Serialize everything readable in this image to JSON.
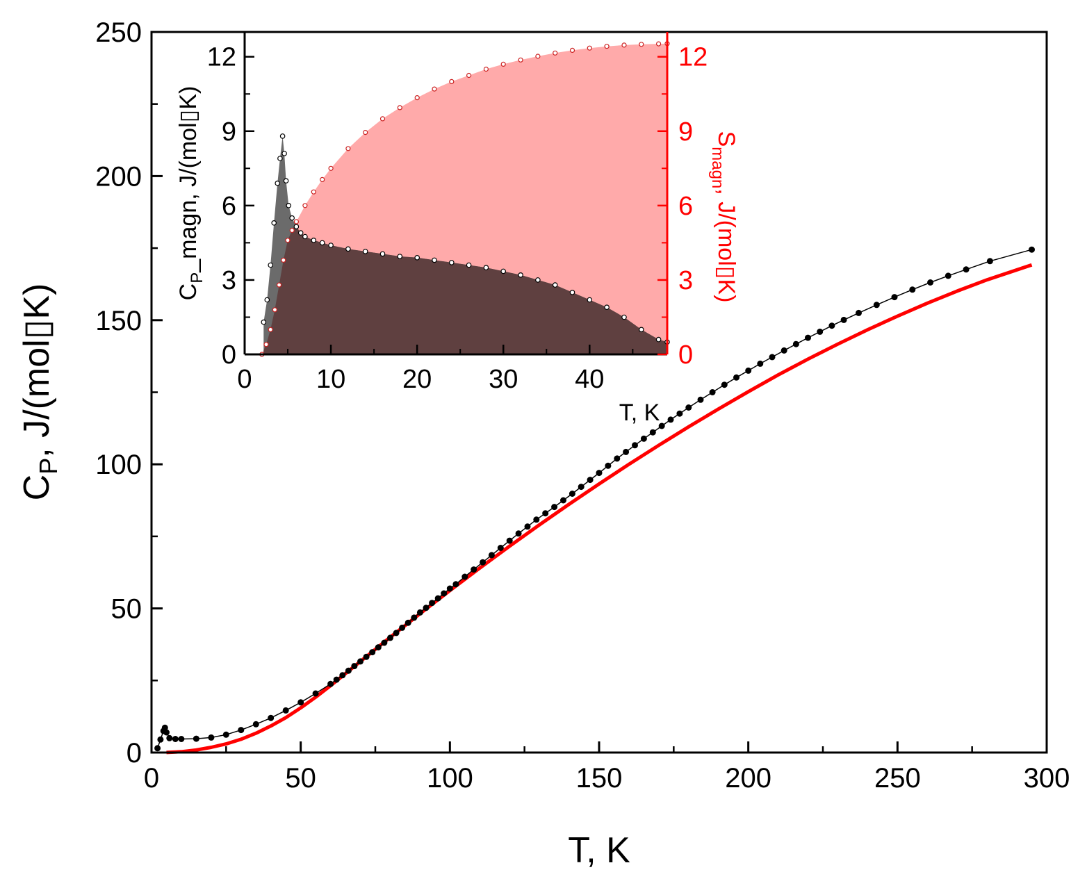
{
  "chart_data": [
    {
      "type": "scatter",
      "role": "main",
      "xlabel": "T, K",
      "ylabel_main": "C",
      "ylabel_sub": "P",
      "ylabel_rest": ", J/(mol▯K)",
      "xlim": [
        0,
        300
      ],
      "ylim": [
        0,
        250
      ],
      "xticks": [
        0,
        50,
        100,
        150,
        200,
        250,
        300
      ],
      "yticks": [
        0,
        50,
        100,
        150,
        200,
        250
      ],
      "colors": {
        "measured": "#000000",
        "fit": "#ff0000"
      },
      "series": [
        {
          "kind": "measured",
          "marker": "filled-circle",
          "x": [
            2,
            3,
            4,
            4.5,
            5,
            6,
            8,
            10,
            15,
            20,
            25,
            30,
            35,
            40,
            45,
            50,
            55,
            60,
            62,
            64,
            66,
            68,
            70,
            72,
            74,
            76,
            78,
            80,
            82,
            84,
            86,
            88,
            90,
            92,
            94,
            96,
            98,
            100,
            102,
            105,
            108,
            111,
            114,
            117,
            120,
            123,
            126,
            129,
            132,
            135,
            138,
            141,
            144,
            147,
            150,
            153,
            156,
            159,
            162,
            165,
            168,
            171,
            174,
            177,
            180,
            184,
            188,
            192,
            196,
            200,
            204,
            208,
            212,
            216,
            220,
            224,
            228,
            232,
            237,
            243,
            249,
            255,
            261,
            267,
            273,
            281,
            295
          ],
          "y": [
            1.5,
            4.5,
            7.5,
            8.6,
            7.0,
            5.0,
            4.7,
            4.7,
            4.8,
            5.2,
            6.2,
            7.8,
            9.8,
            12.0,
            14.6,
            17.4,
            20.5,
            23.8,
            25.3,
            26.8,
            28.4,
            30.0,
            31.6,
            33.2,
            34.8,
            36.5,
            38.1,
            39.8,
            41.5,
            43.3,
            45.0,
            46.8,
            48.6,
            50.2,
            51.9,
            53.5,
            55.2,
            56.9,
            58.4,
            61.0,
            63.5,
            66.0,
            68.5,
            71.0,
            73.5,
            76.0,
            78.4,
            80.8,
            83.0,
            85.2,
            87.5,
            89.8,
            92.2,
            94.6,
            97.0,
            99.5,
            102.0,
            104.3,
            106.6,
            108.9,
            111.1,
            113.3,
            115.5,
            117.6,
            119.7,
            122.4,
            125.0,
            127.6,
            130.1,
            132.5,
            134.9,
            137.2,
            139.5,
            141.7,
            143.9,
            146.0,
            148.1,
            150.1,
            152.5,
            155.3,
            158.0,
            160.6,
            163.1,
            165.4,
            167.6,
            170.5,
            174.5
          ]
        },
        {
          "kind": "fit",
          "marker": "line",
          "x": [
            5,
            10,
            15,
            20,
            25,
            30,
            35,
            40,
            45,
            50,
            55,
            60,
            70,
            80,
            90,
            100,
            110,
            120,
            130,
            140,
            150,
            160,
            170,
            180,
            190,
            200,
            210,
            220,
            230,
            240,
            250,
            260,
            270,
            280,
            295
          ],
          "y": [
            0.02,
            0.3,
            0.9,
            1.8,
            3.0,
            4.6,
            6.7,
            9.2,
            12.1,
            15.5,
            19.2,
            23.2,
            31.6,
            40.0,
            48.2,
            56.2,
            64.0,
            71.6,
            79.0,
            86.2,
            93.2,
            100.0,
            106.6,
            113.0,
            119.2,
            125.2,
            131.0,
            136.5,
            141.7,
            146.7,
            151.4,
            155.9,
            160.1,
            164.0,
            169.2
          ]
        }
      ]
    },
    {
      "type": "area",
      "role": "inset",
      "xlabel": "T, K",
      "ylabel_left_main": "C",
      "ylabel_left_sub": "P",
      "ylabel_left_rest": "_magn, J/(mol▯K)",
      "ylabel_right_main": "S",
      "ylabel_right_sub": "magn",
      "ylabel_right_rest": ", J/(mol▯K)",
      "xlim": [
        0,
        49
      ],
      "ylim_left": [
        0,
        13
      ],
      "ylim_right": [
        0,
        13
      ],
      "xticks": [
        0,
        10,
        20,
        30,
        40
      ],
      "yticks_left": [
        0,
        3,
        6,
        9,
        12
      ],
      "yticks_right": [
        0,
        3,
        6,
        9,
        12
      ],
      "colors": {
        "cp_fill": "#5f4040",
        "cp_peak_fill": "#6b6b6b",
        "s_fill": "#ffaaaa",
        "s_marker": "#cc2020",
        "right_axis": "#ff0000"
      },
      "series": [
        {
          "kind": "cp_magn",
          "axis": "left",
          "marker": "open-circle",
          "x": [
            2.2,
            2.6,
            3.0,
            3.4,
            3.8,
            4.1,
            4.4,
            4.6,
            4.8,
            5.1,
            5.5,
            6.0,
            6.5,
            7.0,
            8,
            9,
            10,
            12,
            14,
            16,
            18,
            20,
            22,
            24,
            26,
            28,
            30,
            32,
            34,
            36,
            38,
            40,
            42,
            44,
            46,
            48,
            49
          ],
          "y": [
            1.3,
            2.2,
            3.6,
            5.3,
            6.9,
            7.9,
            8.8,
            8.1,
            7.0,
            6.0,
            5.5,
            5.15,
            4.9,
            4.75,
            4.6,
            4.5,
            4.4,
            4.25,
            4.15,
            4.05,
            3.95,
            3.9,
            3.8,
            3.7,
            3.6,
            3.5,
            3.35,
            3.2,
            3.0,
            2.8,
            2.5,
            2.2,
            1.9,
            1.5,
            1.0,
            0.6,
            0.5
          ]
        },
        {
          "kind": "s_magn",
          "axis": "right",
          "marker": "open-circle",
          "x": [
            2.0,
            2.5,
            3.0,
            3.5,
            4.0,
            4.5,
            5.0,
            5.5,
            6.0,
            7.0,
            8,
            9,
            10,
            12,
            14,
            16,
            18,
            20,
            22,
            24,
            26,
            28,
            30,
            32,
            34,
            36,
            38,
            40,
            42,
            44,
            46,
            48,
            49
          ],
          "y": [
            0.0,
            0.4,
            1.0,
            1.8,
            2.8,
            3.8,
            4.6,
            5.0,
            5.35,
            6.0,
            6.55,
            7.05,
            7.5,
            8.3,
            8.95,
            9.5,
            9.95,
            10.35,
            10.7,
            11.0,
            11.25,
            11.5,
            11.7,
            11.87,
            12.02,
            12.15,
            12.26,
            12.35,
            12.42,
            12.47,
            12.5,
            12.52,
            12.53
          ]
        }
      ]
    }
  ]
}
